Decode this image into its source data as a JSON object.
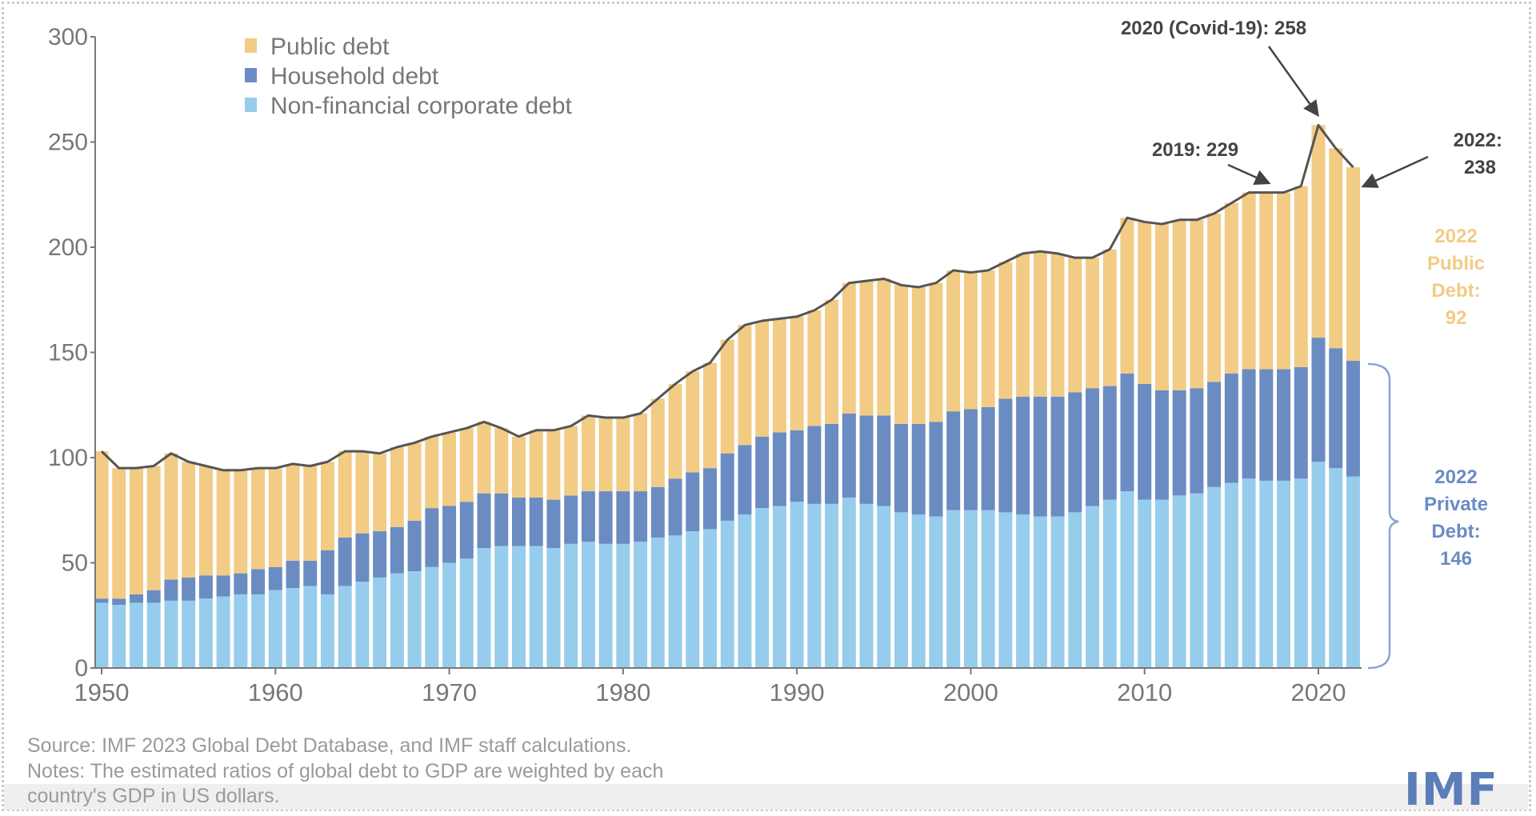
{
  "chart_data": {
    "type": "bar",
    "stacked": true,
    "x": [
      1950,
      1951,
      1952,
      1953,
      1954,
      1955,
      1956,
      1957,
      1958,
      1959,
      1960,
      1961,
      1962,
      1963,
      1964,
      1965,
      1966,
      1967,
      1968,
      1969,
      1970,
      1971,
      1972,
      1973,
      1974,
      1975,
      1976,
      1977,
      1978,
      1979,
      1980,
      1981,
      1982,
      1983,
      1984,
      1985,
      1986,
      1987,
      1988,
      1989,
      1990,
      1991,
      1992,
      1993,
      1994,
      1995,
      1996,
      1997,
      1998,
      1999,
      2000,
      2001,
      2002,
      2003,
      2004,
      2005,
      2006,
      2007,
      2008,
      2009,
      2010,
      2011,
      2012,
      2013,
      2014,
      2015,
      2016,
      2017,
      2018,
      2019,
      2020,
      2021,
      2022
    ],
    "series": [
      {
        "name": "Non-financial corporate debt",
        "color": "#97CDEC",
        "values": [
          31,
          30,
          31,
          31,
          32,
          32,
          33,
          34,
          35,
          35,
          37,
          38,
          39,
          35,
          39,
          41,
          43,
          45,
          46,
          48,
          50,
          52,
          57,
          58,
          58,
          58,
          57,
          59,
          60,
          59,
          59,
          60,
          62,
          63,
          65,
          66,
          70,
          73,
          76,
          77,
          79,
          78,
          78,
          81,
          78,
          77,
          74,
          73,
          72,
          75,
          75,
          75,
          74,
          73,
          72,
          72,
          74,
          77,
          80,
          84,
          80,
          80,
          82,
          83,
          86,
          88,
          90,
          89,
          89,
          90,
          98,
          95,
          91
        ]
      },
      {
        "name": "Household debt",
        "color": "#6A8CC2",
        "values": [
          2,
          3,
          4,
          6,
          10,
          11,
          11,
          10,
          10,
          12,
          11,
          13,
          12,
          21,
          23,
          23,
          22,
          22,
          24,
          28,
          27,
          27,
          26,
          25,
          23,
          23,
          23,
          23,
          24,
          25,
          25,
          24,
          24,
          27,
          28,
          29,
          32,
          33,
          34,
          35,
          34,
          37,
          38,
          40,
          42,
          43,
          42,
          43,
          45,
          47,
          48,
          49,
          54,
          56,
          57,
          57,
          57,
          56,
          54,
          56,
          55,
          52,
          50,
          50,
          50,
          52,
          52,
          53,
          53,
          53,
          59,
          57,
          55
        ]
      },
      {
        "name": "Public debt",
        "color": "#F2CB85",
        "values": [
          70,
          62,
          60,
          59,
          60,
          55,
          52,
          50,
          49,
          48,
          47,
          46,
          45,
          42,
          41,
          39,
          37,
          38,
          37,
          34,
          35,
          35,
          34,
          31,
          29,
          32,
          33,
          33,
          36,
          35,
          35,
          37,
          42,
          45,
          48,
          50,
          54,
          57,
          55,
          54,
          54,
          55,
          59,
          62,
          64,
          65,
          66,
          65,
          66,
          67,
          65,
          65,
          65,
          68,
          69,
          68,
          64,
          62,
          65,
          74,
          77,
          79,
          81,
          80,
          80,
          81,
          84,
          84,
          84,
          86,
          101,
          95,
          92
        ]
      }
    ],
    "totals": [
      103,
      95,
      95,
      96,
      102,
      98,
      96,
      94,
      94,
      95,
      95,
      97,
      96,
      98,
      103,
      103,
      102,
      105,
      107,
      110,
      112,
      114,
      117,
      114,
      110,
      113,
      113,
      115,
      120,
      119,
      119,
      121,
      128,
      135,
      141,
      145,
      156,
      163,
      165,
      166,
      167,
      170,
      175,
      183,
      184,
      185,
      182,
      181,
      183,
      189,
      188,
      189,
      193,
      197,
      198,
      197,
      195,
      195,
      199,
      214,
      212,
      211,
      213,
      213,
      216,
      221,
      226,
      226,
      226,
      229,
      258,
      247,
      238
    ],
    "ylim": [
      0,
      300
    ],
    "yticks": [
      "0",
      "50",
      "100",
      "150",
      "200",
      "250",
      "300"
    ],
    "xticks": [
      "1950",
      "1960",
      "1970",
      "1980",
      "1990",
      "2000",
      "2010",
      "2020"
    ],
    "legend": [
      "Public debt",
      "Household debt",
      "Non-financial corporate debt"
    ],
    "legend_position": "top-left",
    "annotations": {
      "covid": "2020 (Covid-19): 258",
      "y2019": "2019: 229",
      "y2022_line1": "2022:",
      "y2022_line2": "238",
      "public": [
        "2022",
        "Public",
        "Debt:",
        "92"
      ],
      "private": [
        "2022",
        "Private",
        "Debt:",
        "146"
      ]
    },
    "total_line_color": "#555555",
    "grid": false
  },
  "footer": {
    "source": "Source: IMF 2023 Global Debt Database, and IMF staff calculations.",
    "notes_line1": "Notes: The estimated ratios of global debt to GDP are weighted by each",
    "notes_line2": "country's GDP in US dollars."
  },
  "logo": "IMF"
}
